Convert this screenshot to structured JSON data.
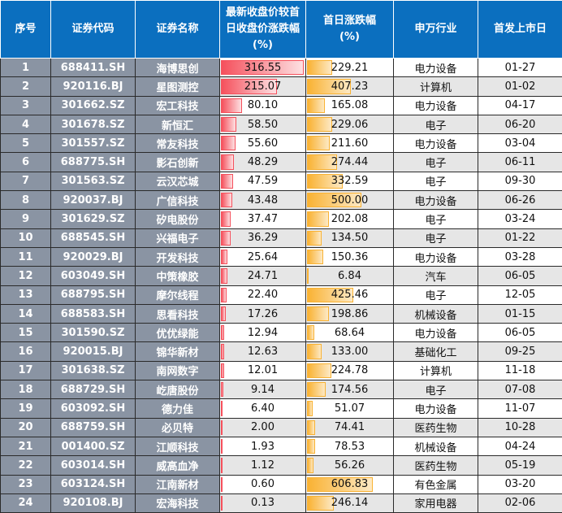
{
  "header": {
    "seq": "序号",
    "code": "证券代码",
    "name": "证券名称",
    "latest": "最新收盘价较首日收盘价涨跌幅(%)",
    "first": "首日涨跌幅(%)",
    "industry": "申万行业",
    "date": "首发上市日"
  },
  "colors": {
    "header": "#0b6fbf",
    "bar_latest": "#f5505c",
    "bar_first": "#f9b233",
    "left_cols": "#8a94a3"
  },
  "rows": [
    [
      "1",
      "688411.SH",
      "海博思创",
      "316.55",
      "229.21",
      "电力设备",
      "01-27"
    ],
    [
      "2",
      "920116.BJ",
      "星图测控",
      "215.07",
      "407.23",
      "计算机",
      "01-02"
    ],
    [
      "3",
      "301662.SZ",
      "宏工科技",
      "80.10",
      "165.08",
      "电力设备",
      "04-17"
    ],
    [
      "4",
      "301678.SZ",
      "新恒汇",
      "58.50",
      "229.06",
      "电子",
      "06-20"
    ],
    [
      "5",
      "301557.SZ",
      "常友科技",
      "55.60",
      "211.60",
      "电力设备",
      "03-04"
    ],
    [
      "6",
      "688775.SH",
      "影石创新",
      "48.29",
      "274.44",
      "电子",
      "06-11"
    ],
    [
      "7",
      "301563.SZ",
      "云汉芯城",
      "47.59",
      "332.59",
      "电子",
      "09-30"
    ],
    [
      "8",
      "920037.BJ",
      "广信科技",
      "43.48",
      "500.00",
      "电力设备",
      "06-26"
    ],
    [
      "9",
      "301629.SZ",
      "矽电股份",
      "37.47",
      "202.08",
      "电子",
      "03-24"
    ],
    [
      "10",
      "688545.SH",
      "兴福电子",
      "36.29",
      "134.50",
      "电子",
      "01-22"
    ],
    [
      "11",
      "920029.BJ",
      "开发科技",
      "25.64",
      "150.36",
      "电力设备",
      "03-28"
    ],
    [
      "12",
      "603049.SH",
      "中策橡胶",
      "24.71",
      "6.84",
      "汽车",
      "06-05"
    ],
    [
      "13",
      "688795.SH",
      "摩尔线程",
      "22.40",
      "425.46",
      "电子",
      "12-05"
    ],
    [
      "14",
      "688583.SH",
      "思看科技",
      "17.26",
      "198.86",
      "机械设备",
      "01-15"
    ],
    [
      "15",
      "301590.SZ",
      "优优绿能",
      "12.94",
      "68.64",
      "电力设备",
      "06-05"
    ],
    [
      "16",
      "920015.BJ",
      "锦华新材",
      "12.63",
      "133.00",
      "基础化工",
      "09-25"
    ],
    [
      "17",
      "301638.SZ",
      "南网数字",
      "12.01",
      "224.78",
      "计算机",
      "11-18"
    ],
    [
      "18",
      "688729.SH",
      "屹唐股份",
      "9.14",
      "174.56",
      "电子",
      "07-08"
    ],
    [
      "19",
      "603092.SH",
      "德力佳",
      "6.40",
      "51.07",
      "电力设备",
      "11-07"
    ],
    [
      "20",
      "688759.SH",
      "必贝特",
      "2.00",
      "74.41",
      "医药生物",
      "10-28"
    ],
    [
      "21",
      "001400.SZ",
      "江顺科技",
      "1.93",
      "78.53",
      "机械设备",
      "04-24"
    ],
    [
      "22",
      "603014.SH",
      "威高血净",
      "1.12",
      "56.26",
      "医药生物",
      "05-19"
    ],
    [
      "23",
      "603124.SH",
      "江南新材",
      "0.60",
      "606.83",
      "有色金属",
      "03-20"
    ],
    [
      "24",
      "920108.BJ",
      "宏海科技",
      "0.13",
      "246.14",
      "家用电器",
      "02-06"
    ]
  ]
}
